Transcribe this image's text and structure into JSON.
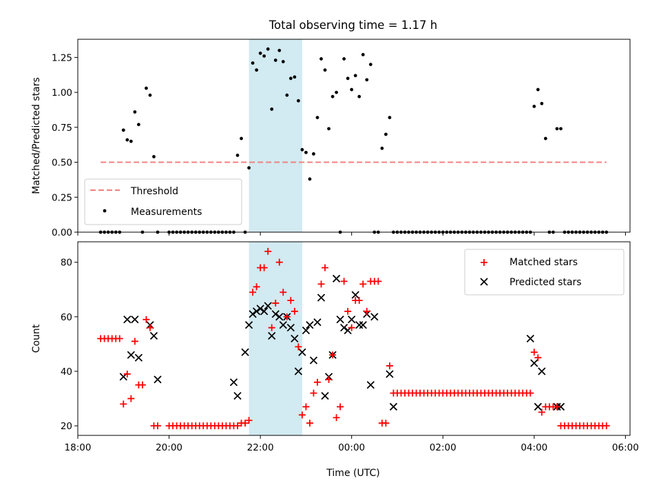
{
  "title": "Total observing time = 1.17 h",
  "xlabel": "Time (UTC)",
  "colors": {
    "threshold": "#f08080",
    "measurement": "#000000",
    "matched": "#ff0000",
    "predicted": "#000000",
    "highlight": "#add8e6"
  },
  "chart_data": [
    {
      "type": "scatter",
      "ylabel": "Matched/Predicted stars",
      "xlim": [
        18.0,
        6.1
      ],
      "x_unit": "hours UTC (after 24:00 continues as next day)",
      "ylim": [
        0,
        1.38
      ],
      "yticks": [
        "0.00",
        "0.25",
        "0.50",
        "0.75",
        "1.00",
        "1.25"
      ],
      "ytick_values": [
        0,
        0.25,
        0.5,
        0.75,
        1.0,
        1.25
      ],
      "legend": {
        "placement": "lower-left",
        "entries": [
          "Threshold",
          "Measurements"
        ]
      },
      "highlight_span": [
        "21:45",
        "22:55"
      ],
      "threshold": {
        "name": "Threshold",
        "y": 0.5,
        "x_range": [
          "18:30",
          "05:35"
        ]
      },
      "series": [
        {
          "name": "Measurements",
          "x": [
            "18:30",
            "18:35",
            "18:40",
            "18:45",
            "18:50",
            "18:55",
            "19:00",
            "19:05",
            "19:10",
            "19:15",
            "19:20",
            "19:25",
            "19:30",
            "19:35",
            "19:40",
            "19:45",
            "20:00",
            "20:05",
            "20:10",
            "20:15",
            "20:20",
            "20:25",
            "20:30",
            "20:35",
            "20:40",
            "20:45",
            "20:50",
            "20:55",
            "21:00",
            "21:05",
            "21:10",
            "21:15",
            "21:20",
            "21:25",
            "21:30",
            "21:35",
            "21:40",
            "21:45",
            "21:50",
            "21:55",
            "22:00",
            "22:05",
            "22:10",
            "22:15",
            "22:20",
            "22:25",
            "22:30",
            "22:35",
            "22:40",
            "22:45",
            "22:50",
            "22:55",
            "23:00",
            "23:05",
            "23:10",
            "23:15",
            "23:20",
            "23:25",
            "23:30",
            "23:35",
            "23:40",
            "23:45",
            "23:50",
            "23:55",
            "00:00",
            "00:05",
            "00:10",
            "00:15",
            "00:20",
            "00:25",
            "00:30",
            "00:35",
            "00:40",
            "00:45",
            "00:50",
            "00:55",
            "01:00",
            "01:05",
            "01:10",
            "01:15",
            "01:20",
            "01:25",
            "01:30",
            "01:35",
            "01:40",
            "01:45",
            "01:50",
            "01:55",
            "02:00",
            "02:05",
            "02:10",
            "02:15",
            "02:20",
            "02:25",
            "02:30",
            "02:35",
            "02:40",
            "02:45",
            "02:50",
            "02:55",
            "03:00",
            "03:05",
            "03:10",
            "03:15",
            "03:20",
            "03:25",
            "03:30",
            "03:35",
            "03:40",
            "03:45",
            "03:50",
            "03:55",
            "04:00",
            "04:05",
            "04:10",
            "04:15",
            "04:20",
            "04:25",
            "04:30",
            "04:35",
            "04:40",
            "04:45",
            "04:50",
            "04:55",
            "05:00",
            "05:05",
            "05:10",
            "05:15",
            "05:20",
            "05:25",
            "05:30",
            "05:35"
          ],
          "values": [
            0,
            0,
            0,
            0,
            0,
            0,
            0.73,
            0.66,
            0.65,
            0.86,
            0.77,
            0,
            1.03,
            0.98,
            0.54,
            0,
            0,
            0,
            0,
            0,
            0,
            0,
            0,
            0,
            0,
            0,
            0,
            0,
            0,
            0,
            0,
            0,
            0,
            0,
            0.55,
            0.67,
            0,
            0.46,
            1.21,
            1.16,
            1.28,
            1.26,
            1.31,
            0.88,
            1.23,
            1.3,
            1.22,
            0.98,
            1.1,
            1.11,
            0.94,
            0.59,
            0.57,
            0.38,
            0.56,
            0.82,
            1.24,
            1.16,
            0.74,
            0.97,
            1.0,
            0,
            1.24,
            1.1,
            1.02,
            1.12,
            0.97,
            1.27,
            1.09,
            1.2,
            0,
            0,
            0.6,
            0.7,
            0.82,
            0,
            0,
            0,
            0,
            0,
            0,
            0,
            0,
            0,
            0,
            0,
            0,
            0,
            0,
            0,
            0,
            0,
            0,
            0,
            0,
            0,
            0,
            0,
            0,
            0,
            0,
            0,
            0,
            0,
            0,
            0,
            0,
            0,
            0,
            0,
            0,
            0,
            0.9,
            1.02,
            0.92,
            0.67,
            0,
            0,
            0.74,
            0.74,
            0,
            0,
            0,
            0,
            0,
            0,
            0,
            0,
            0,
            0,
            0,
            0
          ]
        }
      ]
    },
    {
      "type": "scatter",
      "ylabel": "Count",
      "xlim": [
        18.0,
        6.1
      ],
      "ylim": [
        16.5,
        87.5
      ],
      "yticks": [
        "20",
        "40",
        "60",
        "80"
      ],
      "ytick_values": [
        20,
        40,
        60,
        80
      ],
      "xticks": [
        "18:00",
        "20:00",
        "22:00",
        "00:00",
        "02:00",
        "04:00",
        "06:00"
      ],
      "legend": {
        "placement": "upper-right",
        "entries": [
          "Matched stars",
          "Predicted stars"
        ]
      },
      "highlight_span": [
        "21:45",
        "22:55"
      ],
      "series": [
        {
          "name": "Matched stars",
          "x": [
            "18:30",
            "18:35",
            "18:40",
            "18:45",
            "18:50",
            "18:55",
            "19:00",
            "19:05",
            "19:10",
            "19:15",
            "19:20",
            "19:25",
            "19:30",
            "19:35",
            "19:40",
            "19:45",
            "20:00",
            "20:05",
            "20:10",
            "20:15",
            "20:20",
            "20:25",
            "20:30",
            "20:35",
            "20:40",
            "20:45",
            "20:50",
            "20:55",
            "21:00",
            "21:05",
            "21:10",
            "21:15",
            "21:20",
            "21:25",
            "21:30",
            "21:35",
            "21:40",
            "21:45",
            "21:50",
            "21:55",
            "22:00",
            "22:05",
            "22:10",
            "22:15",
            "22:20",
            "22:25",
            "22:30",
            "22:35",
            "22:40",
            "22:45",
            "22:50",
            "22:55",
            "23:00",
            "23:05",
            "23:10",
            "23:15",
            "23:20",
            "23:25",
            "23:30",
            "23:35",
            "23:40",
            "23:45",
            "23:50",
            "23:55",
            "00:00",
            "00:05",
            "00:10",
            "00:15",
            "00:20",
            "00:25",
            "00:30",
            "00:35",
            "00:40",
            "00:45",
            "00:50",
            "00:55",
            "01:00",
            "01:05",
            "01:10",
            "01:15",
            "01:20",
            "01:25",
            "01:30",
            "01:35",
            "01:40",
            "01:45",
            "01:50",
            "01:55",
            "02:00",
            "02:05",
            "02:10",
            "02:15",
            "02:20",
            "02:25",
            "02:30",
            "02:35",
            "02:40",
            "02:45",
            "02:50",
            "02:55",
            "03:00",
            "03:05",
            "03:10",
            "03:15",
            "03:20",
            "03:25",
            "03:30",
            "03:35",
            "03:40",
            "03:45",
            "03:50",
            "03:55",
            "04:00",
            "04:05",
            "04:10",
            "04:15",
            "04:20",
            "04:25",
            "04:30",
            "04:35",
            "04:40",
            "04:45",
            "04:50",
            "04:55",
            "05:00",
            "05:05",
            "05:10",
            "05:15",
            "05:20",
            "05:25",
            "05:30",
            "05:35"
          ],
          "values": [
            52,
            52,
            52,
            52,
            52,
            52,
            28,
            39,
            30,
            51,
            35,
            35,
            59,
            56,
            20,
            20,
            20,
            20,
            20,
            20,
            20,
            20,
            20,
            20,
            20,
            20,
            20,
            20,
            20,
            20,
            20,
            20,
            20,
            20,
            20,
            21,
            21,
            22,
            69,
            71,
            78,
            78,
            84,
            56,
            65,
            80,
            69,
            60,
            66,
            62,
            49,
            24,
            27,
            21,
            32,
            36,
            72,
            78,
            37,
            46,
            23,
            27,
            73,
            62,
            56,
            66,
            66,
            72,
            62,
            73,
            73,
            73,
            21,
            21,
            42,
            32,
            32,
            32,
            32,
            32,
            32,
            32,
            32,
            32,
            32,
            32,
            32,
            32,
            32,
            32,
            32,
            32,
            32,
            32,
            32,
            32,
            32,
            32,
            32,
            32,
            32,
            32,
            32,
            32,
            32,
            32,
            32,
            32,
            32,
            32,
            32,
            32,
            47,
            45,
            25,
            27,
            27,
            27,
            27,
            20,
            20,
            20,
            20,
            20,
            20,
            20,
            20,
            20,
            20,
            20,
            20,
            20
          ]
        },
        {
          "name": "Predicted stars",
          "x": [
            "19:00",
            "19:05",
            "19:10",
            "19:15",
            "19:20",
            "19:35",
            "19:40",
            "19:45",
            "21:25",
            "21:30",
            "21:40",
            "21:45",
            "21:50",
            "21:55",
            "22:00",
            "22:05",
            "22:10",
            "22:15",
            "22:20",
            "22:25",
            "22:30",
            "22:35",
            "22:40",
            "22:45",
            "22:50",
            "22:55",
            "23:00",
            "23:05",
            "23:10",
            "23:15",
            "23:20",
            "23:25",
            "23:30",
            "23:35",
            "23:40",
            "23:45",
            "23:50",
            "23:55",
            "00:00",
            "00:05",
            "00:10",
            "00:15",
            "00:20",
            "00:25",
            "00:30",
            "00:50",
            "00:55",
            "03:55",
            "04:00",
            "04:05",
            "04:10",
            "04:30",
            "04:35"
          ],
          "values": [
            38,
            59,
            46,
            59,
            45,
            57,
            53,
            37,
            36,
            31,
            47,
            57,
            61,
            62,
            63,
            62,
            64,
            53,
            61,
            60,
            57,
            60,
            56,
            52,
            40,
            47,
            55,
            57,
            44,
            58,
            67,
            31,
            38,
            46,
            74,
            59,
            56,
            55,
            59,
            68,
            57,
            57,
            61,
            35,
            60,
            39,
            27,
            52,
            43,
            27,
            40,
            27,
            27
          ]
        }
      ]
    }
  ]
}
